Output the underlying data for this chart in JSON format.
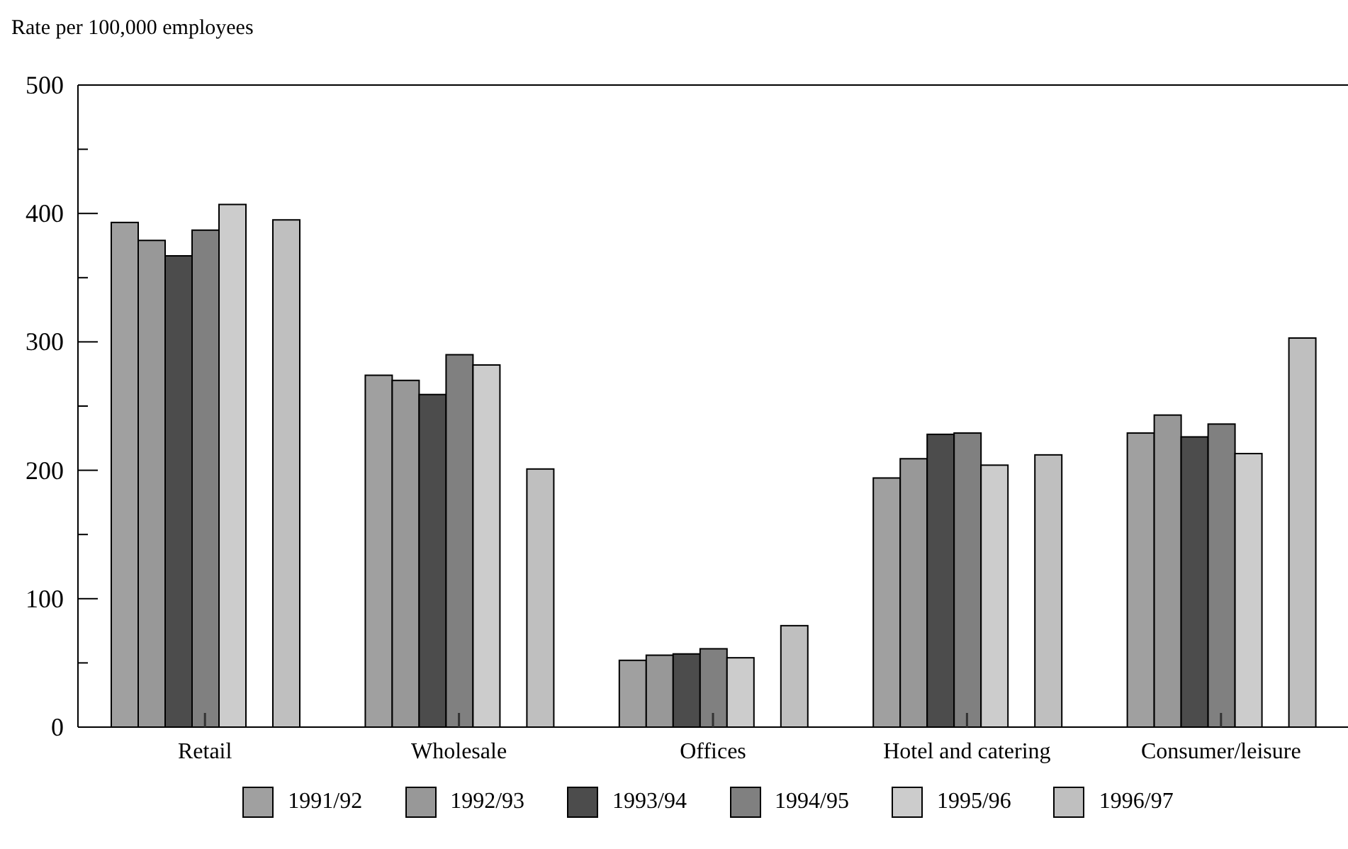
{
  "chart_data": {
    "type": "bar",
    "ylabel": "Rate per 100,000 employees",
    "categories": [
      "Retail",
      "Wholesale",
      "Offices",
      "Hotel and catering",
      "Consumer/leisure"
    ],
    "series": [
      {
        "name": "1991/92",
        "color": "#a0a0a0",
        "values": [
          393,
          274,
          52,
          194,
          229
        ]
      },
      {
        "name": "1992/93",
        "color": "#989898",
        "values": [
          379,
          270,
          56,
          209,
          243
        ]
      },
      {
        "name": "1993/94",
        "color": "#4c4c4c",
        "values": [
          367,
          259,
          57,
          228,
          226
        ]
      },
      {
        "name": "1994/95",
        "color": "#808080",
        "values": [
          387,
          290,
          61,
          229,
          236
        ]
      },
      {
        "name": "1995/96",
        "color": "#cccccc",
        "values": [
          407,
          282,
          54,
          204,
          213
        ]
      },
      {
        "name": "1996/97",
        "color": "#bfbfbf",
        "values": [
          395,
          201,
          79,
          212,
          303
        ]
      }
    ],
    "ylim": [
      0,
      500
    ],
    "yticks": [
      0,
      {
        "value": 50,
        "label": null
      },
      100,
      {
        "value": 150,
        "label": null
      },
      200,
      {
        "value": 250,
        "label": null
      },
      300,
      {
        "value": 350,
        "label": null
      },
      400,
      {
        "value": 450,
        "label": null
      },
      500
    ],
    "legend": "bottom",
    "grid": false
  }
}
